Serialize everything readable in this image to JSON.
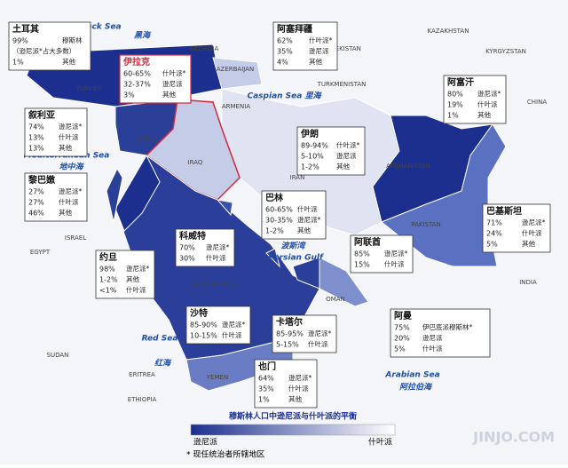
{
  "map_labels": [
    "Black Sea",
    "黑海",
    "GEORGIA",
    "KAZAKHSTAN",
    "UZBEKISTAN",
    "KYRGYZSTAN",
    "AZERBAIJAN",
    "TURKEY",
    "TURKMENISTAN",
    "Caspian Sea 里海",
    "ARMENIA",
    "CHINA",
    "SYRIA",
    "IRAQ",
    "IRAN",
    "AFGHANISTAN",
    "Mediterranean Sea",
    "地中海",
    "PAKISTAN",
    "ISRAEL",
    "EGYPT",
    "波斯湾",
    "Persian Gulf",
    "INDIA",
    "SAUDI ARABIA",
    "OMAN",
    "SUDAN",
    "Red Sea",
    "红海",
    "ERITREA",
    "YEMEN",
    "Arabian Sea",
    "阿拉伯海",
    "ETHIOPIA"
  ],
  "callouts": [
    {
      "title": "土耳其",
      "rows": [
        [
          "99%",
          "穆斯林"
        ],
        [
          "（逊尼派*占大多数）"
        ],
        [
          "1%",
          "其他"
        ]
      ]
    },
    {
      "title": "伊拉克",
      "rows": [
        [
          "60-65%",
          "什叶派*"
        ],
        [
          "32-37%",
          "逊尼派"
        ],
        [
          "3%",
          "其他"
        ]
      ]
    },
    {
      "title": "阿塞拜疆",
      "rows": [
        [
          "62%",
          "什叶派*"
        ],
        [
          "35%",
          "逊尼派"
        ],
        [
          "4%",
          "其他"
        ]
      ]
    },
    {
      "title": "阿富汗",
      "rows": [
        [
          "80%",
          "逊尼派*"
        ],
        [
          "19%",
          "什叶派"
        ],
        [
          "1%",
          "其他"
        ]
      ]
    },
    {
      "title": "叙利亚",
      "rows": [
        [
          "74%",
          "逊尼派*"
        ],
        [
          "13%",
          "什叶派"
        ],
        [
          "13%",
          "其他"
        ]
      ]
    },
    {
      "title": "伊朗",
      "rows": [
        [
          "89-94%",
          "什叶派*"
        ],
        [
          "5-10%",
          "逊尼派"
        ],
        [
          "1-2%",
          "其他"
        ]
      ]
    },
    {
      "title": "黎巴嫩",
      "rows": [
        [
          "27%",
          "逊尼派*"
        ],
        [
          "27%",
          "什叶派"
        ],
        [
          "46%",
          "其他"
        ]
      ]
    },
    {
      "title": "巴林",
      "rows": [
        [
          "60-65%",
          "什叶派"
        ],
        [
          "30-35%",
          "逊尼派*"
        ],
        [
          "1-2%",
          "其他"
        ]
      ]
    },
    {
      "title": "科威特",
      "rows": [
        [
          "70%",
          "逊尼派*"
        ],
        [
          "30%",
          "什叶派"
        ]
      ]
    },
    {
      "title": "阿联酋",
      "rows": [
        [
          "85%",
          "逊尼派*"
        ],
        [
          "15%",
          "什叶派"
        ]
      ]
    },
    {
      "title": "巴基斯坦",
      "rows": [
        [
          "71%",
          "逊尼派*"
        ],
        [
          "24%",
          "什叶派"
        ],
        [
          "5%",
          "其他"
        ]
      ]
    },
    {
      "title": "约旦",
      "rows": [
        [
          "98%",
          "逊尼派*"
        ],
        [
          "1-2%",
          "其他"
        ],
        [
          "<1%",
          "什叶派"
        ]
      ]
    },
    {
      "title": "沙特",
      "rows": [
        [
          "85-90%",
          "逊尼派*"
        ],
        [
          "10-15%",
          "什叶派"
        ]
      ]
    },
    {
      "title": "卡塔尔",
      "rows": [
        [
          "85-95%",
          "逊尼派*"
        ],
        [
          "5-15%",
          "什叶派"
        ]
      ]
    },
    {
      "title": "阿曼",
      "rows": [
        [
          "75%",
          "伊巴底派穆斯林*"
        ],
        [
          "20%",
          "逊尼派"
        ],
        [
          "5%",
          "什叶派"
        ]
      ]
    },
    {
      "title": "也门",
      "rows": [
        [
          "64%",
          "逊尼派*"
        ],
        [
          "35%",
          "什叶派"
        ],
        [
          "1%",
          "其他"
        ]
      ]
    }
  ],
  "legend": {
    "title": "穆斯林人口中逊尼派与什叶派的平衡",
    "left": "逊尼派",
    "right": "什叶派"
  },
  "note": "* 现任统治者所辖地区",
  "watermark": "JINJO.COM"
}
